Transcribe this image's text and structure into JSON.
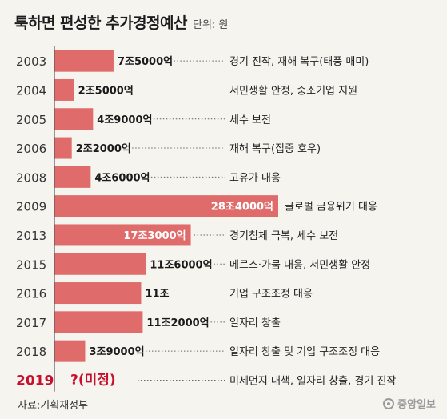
{
  "header": {
    "title": "툭하면 편성한 추가경정예산",
    "unit": "단위: 원"
  },
  "footer": {
    "source": "자료:기획재정부",
    "logo_text": "중앙일보"
  },
  "colors": {
    "bar": "#e06b6b",
    "highlight": "#c8102e",
    "axis": "#555555",
    "leader": "#666666",
    "background": "#f6f4ef"
  },
  "chart_data": {
    "type": "bar",
    "orientation": "horizontal",
    "categories": [
      "2003",
      "2004",
      "2005",
      "2006",
      "2008",
      "2009",
      "2013",
      "2015",
      "2016",
      "2017",
      "2018",
      "2019"
    ],
    "values": [
      7.5,
      2.5,
      4.9,
      2.2,
      4.6,
      28.4,
      17.3,
      11.6,
      11.0,
      11.2,
      3.9,
      null
    ],
    "value_unit": "조 원",
    "value_labels": [
      "7조5000억",
      "2조5000억",
      "4조9000억",
      "2조2000억",
      "4조6000억",
      "28조4000억",
      "17조3000억",
      "11조6000억",
      "11조",
      "11조2000억",
      "3조9000억",
      "?(미정)"
    ],
    "purposes": [
      "경기 진작, 재해 복구(태풍 매미)",
      "서민생활 안정, 중소기업 지원",
      "세수 보전",
      "재해 복구(집중 호우)",
      "고유가 대응",
      "글로벌 금융위기 대응",
      "경기침체 극복, 세수 보전",
      "메르스·가뭄 대응, 서민생활 안정",
      "기업 구조조정 대응",
      "일자리 창출",
      "일자리 창출 및 기업 구조조정 대응",
      "미세먼지 대책, 일자리 창출, 경기 진작"
    ],
    "highlight_index": 11,
    "xlim": [
      0,
      28.4
    ],
    "title": "툭하면 편성한 추가경정예산",
    "xlabel": "",
    "ylabel": "",
    "grid": false,
    "legend": "none"
  }
}
